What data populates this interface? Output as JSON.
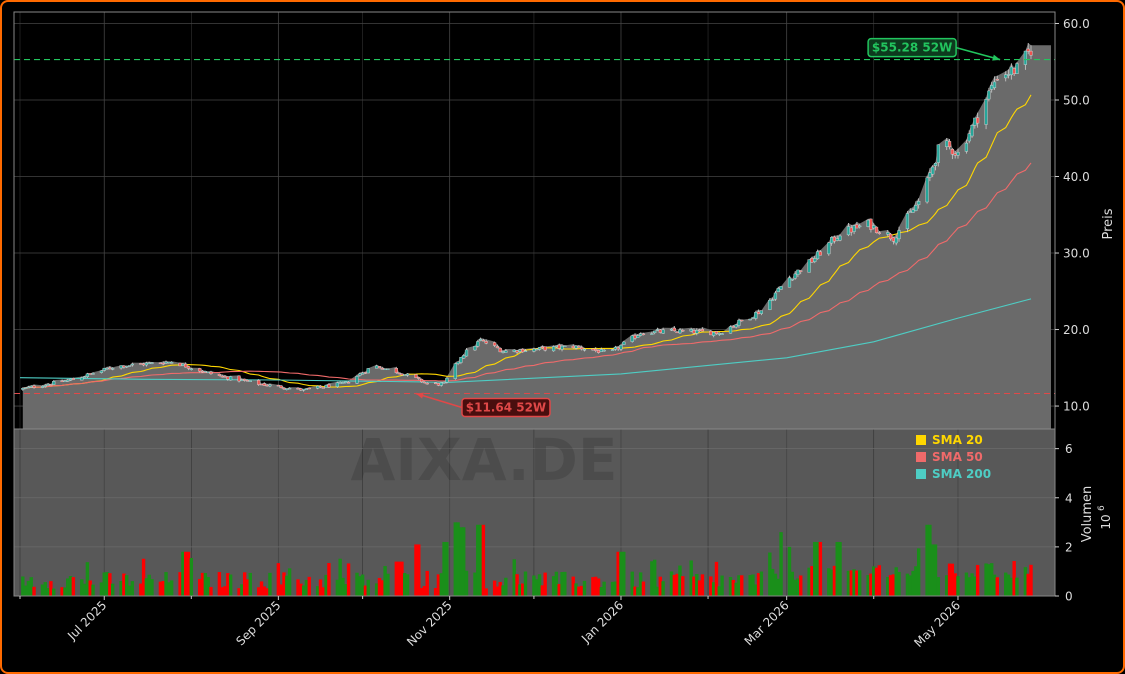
{
  "chart_data": {
    "type": "candlestick",
    "watermark": "AIXA.DE",
    "price_axis": {
      "label": "Preis",
      "ylim": [
        7.0,
        61.5
      ],
      "ticks": [
        10.0,
        20.0,
        30.0,
        40.0,
        50.0,
        60.0
      ],
      "tick_labels": [
        "10.0",
        "20.0",
        "30.0",
        "40.0",
        "50.0",
        "60.0"
      ]
    },
    "volume_axis": {
      "label": "Volumen",
      "exponent_label": "10",
      "exponent_power": "6",
      "ylim": [
        0,
        6.8
      ],
      "ticks": [
        0,
        2,
        4,
        6
      ],
      "tick_labels": [
        "0",
        "2",
        "4",
        "6"
      ]
    },
    "x_axis": {
      "start": "2025-06-01",
      "end": "2026-05-27",
      "ticks": [
        {
          "date": "2025-07-01",
          "label": "Jul 2025"
        },
        {
          "date": "2025-09-01",
          "label": "Sep 2025"
        },
        {
          "date": "2025-11-01",
          "label": "Nov 2025"
        },
        {
          "date": "2026-01-01",
          "label": "Jan 2026"
        },
        {
          "date": "2026-03-01",
          "label": "Mar 2026"
        },
        {
          "date": "2026-05-01",
          "label": "May 2026"
        }
      ]
    },
    "grid": true,
    "legend_position": "top-right of volume panel",
    "close_anchors": [
      {
        "date": "2025-06-01",
        "close": 12.2
      },
      {
        "date": "2025-06-20",
        "close": 13.5
      },
      {
        "date": "2025-07-05",
        "close": 15.2
      },
      {
        "date": "2025-07-25",
        "close": 15.8
      },
      {
        "date": "2025-08-10",
        "close": 14.0
      },
      {
        "date": "2025-08-25",
        "close": 12.9
      },
      {
        "date": "2025-09-10",
        "close": 12.1
      },
      {
        "date": "2025-09-25",
        "close": 13.0
      },
      {
        "date": "2025-10-05",
        "close": 15.3
      },
      {
        "date": "2025-10-15",
        "close": 14.3
      },
      {
        "date": "2025-10-25",
        "close": 12.8
      },
      {
        "date": "2025-10-30",
        "close": 12.9
      },
      {
        "date": "2025-11-05",
        "close": 16.5
      },
      {
        "date": "2025-11-12",
        "close": 18.6
      },
      {
        "date": "2025-11-20",
        "close": 17.2
      },
      {
        "date": "2025-12-01",
        "close": 17.4
      },
      {
        "date": "2025-12-15",
        "close": 17.8
      },
      {
        "date": "2025-12-28",
        "close": 16.9
      },
      {
        "date": "2026-01-08",
        "close": 19.6
      },
      {
        "date": "2026-01-20",
        "close": 19.8
      },
      {
        "date": "2026-02-05",
        "close": 19.6
      },
      {
        "date": "2026-02-20",
        "close": 22.5
      },
      {
        "date": "2026-03-01",
        "close": 26.5
      },
      {
        "date": "2026-03-10",
        "close": 29.0
      },
      {
        "date": "2026-03-20",
        "close": 32.6
      },
      {
        "date": "2026-03-30",
        "close": 33.8
      },
      {
        "date": "2026-04-08",
        "close": 32.0
      },
      {
        "date": "2026-04-18",
        "close": 37.2
      },
      {
        "date": "2026-04-25",
        "close": 44.5
      },
      {
        "date": "2026-05-01",
        "close": 43.0
      },
      {
        "date": "2026-05-08",
        "close": 47.8
      },
      {
        "date": "2026-05-15",
        "close": 53.2
      },
      {
        "date": "2026-05-22",
        "close": 54.0
      },
      {
        "date": "2026-05-27",
        "close": 56.6
      }
    ],
    "series": [
      {
        "name": "SMA 20",
        "color": "#ffd700",
        "window": 20
      },
      {
        "name": "SMA 50",
        "color": "#f06a6a",
        "window": 50
      },
      {
        "name": "SMA 200",
        "color": "#4ecdc4",
        "values": [
          {
            "date": "2025-06-01",
            "value": 13.7
          },
          {
            "date": "2025-07-15",
            "value": 13.5
          },
          {
            "date": "2025-09-01",
            "value": 13.4
          },
          {
            "date": "2025-11-01",
            "value": 13.1
          },
          {
            "date": "2026-01-01",
            "value": 14.2
          },
          {
            "date": "2026-03-01",
            "value": 16.3
          },
          {
            "date": "2026-04-01",
            "value": 18.4
          },
          {
            "date": "2026-05-01",
            "value": 21.5
          },
          {
            "date": "2026-05-27",
            "value": 24.0
          }
        ]
      }
    ],
    "annotations": [
      {
        "label": "$55.28 52W",
        "value": 55.28,
        "color": "#22c55e",
        "pointer_date": "2026-05-16"
      },
      {
        "label": "$11.64 52W",
        "value": 11.64,
        "color": "#e04848",
        "pointer_date": "2025-10-20"
      }
    ],
    "volume_colors": {
      "up": "#1a8f1a",
      "down": "#ff0000"
    },
    "volume_spikes": [
      {
        "date": "2025-10-31",
        "value": 2.2
      },
      {
        "date": "2025-11-01",
        "value": 3.6
      },
      {
        "date": "2025-11-03",
        "value": 3.0
      },
      {
        "date": "2025-11-05",
        "value": 2.8
      },
      {
        "date": "2025-11-12",
        "value": 2.9
      },
      {
        "date": "2025-10-20",
        "value": 2.1
      },
      {
        "date": "2025-10-14",
        "value": 1.4
      },
      {
        "date": "2025-07-30",
        "value": 1.8
      },
      {
        "date": "2026-01-01",
        "value": 1.8
      },
      {
        "date": "2026-02-28",
        "value": 2.6
      },
      {
        "date": "2026-03-01",
        "value": 2.0
      },
      {
        "date": "2026-03-12",
        "value": 2.2
      },
      {
        "date": "2026-03-20",
        "value": 2.2
      },
      {
        "date": "2026-04-20",
        "value": 2.9
      },
      {
        "date": "2026-04-21",
        "value": 2.1
      },
      {
        "date": "2026-04-22",
        "value": 2.1
      }
    ]
  }
}
